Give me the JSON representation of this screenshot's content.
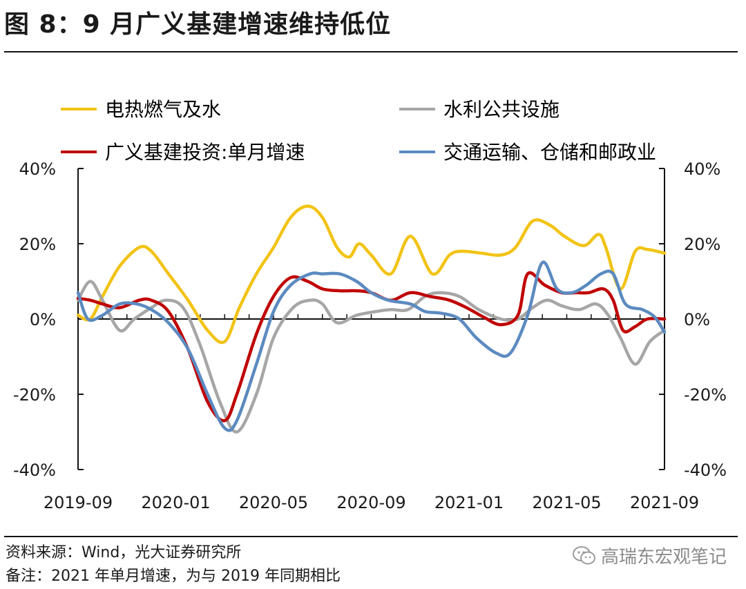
{
  "title": "图 8：9 月广义基建增速维持低位",
  "footer": {
    "source": "资料来源：Wind，光大证券研究所",
    "note": "备注：2021 年单月增速，为与 2019 年同期相比"
  },
  "watermark": {
    "text": "高瑞东宏观笔记"
  },
  "chart_data": {
    "type": "line",
    "title": "9 月广义基建增速维持低位",
    "x_tick_labels": [
      "2019-09",
      "2020-01",
      "2020-05",
      "2020-09",
      "2021-01",
      "2021-05",
      "2021-09"
    ],
    "y_tick_labels_left": [
      "40%",
      "20%",
      "0%",
      "-20%",
      "-40%"
    ],
    "y_tick_labels_right": [
      "40%",
      "20%",
      "0%",
      "-20%",
      "-40%"
    ],
    "ylim": [
      -40,
      40
    ],
    "x_range_months": [
      0,
      24
    ],
    "legend_position": "top",
    "series": [
      {
        "name": "电热燃气及水",
        "color": "#F2C315",
        "x": [
          0,
          0.5,
          1,
          1.7,
          2.5,
          3,
          3.7,
          4.5,
          5.3,
          6,
          6.6,
          7.3,
          8,
          8.7,
          9.4,
          10,
          10.6,
          11.1,
          11.5,
          12,
          12.8,
          13.6,
          14.5,
          15.2,
          15.7,
          16.5,
          17.3,
          17.9,
          18.6,
          19.3,
          19.9,
          20.7,
          21.3,
          21.6,
          22.2,
          22.8,
          23.3,
          24
        ],
        "values": [
          1,
          0,
          6,
          14,
          19,
          18,
          12,
          5,
          -3,
          -6,
          3,
          12,
          19,
          27,
          30,
          27,
          19,
          16.5,
          20,
          17,
          12,
          22,
          12,
          17,
          18,
          17.5,
          17,
          19,
          26,
          25,
          22,
          19.5,
          22.5,
          19,
          8,
          18,
          18.5,
          17.5
        ]
      },
      {
        "name": "水利公共设施",
        "color": "#A6A6A6",
        "x": [
          0,
          0.5,
          1,
          1.7,
          2.3,
          3,
          3.6,
          4.3,
          5,
          5.8,
          6.5,
          7.3,
          8,
          8.8,
          9.5,
          10,
          10.6,
          11.4,
          12.2,
          12.8,
          13.5,
          14.2,
          14.8,
          15.6,
          16.4,
          17.3,
          18,
          18.6,
          19.2,
          19.8,
          20.5,
          21.2,
          21.7,
          22.2,
          22.8,
          23.4,
          24
        ],
        "values": [
          5,
          10,
          5,
          -3,
          0,
          3,
          5,
          3,
          -7,
          -22,
          -30,
          -20,
          -5,
          3,
          5,
          4,
          -1,
          1,
          2,
          2.5,
          2.5,
          6,
          7,
          6,
          2.5,
          0,
          0,
          3,
          5,
          3.5,
          2.5,
          4,
          1,
          -5,
          -12,
          -6,
          -3
        ]
      },
      {
        "name": "广义基建投资:单月增速",
        "color": "#C00000",
        "x": [
          0,
          0.5,
          1,
          1.7,
          2.5,
          3,
          3.7,
          4.5,
          5.3,
          6,
          6.5,
          7.3,
          8,
          8.7,
          9.4,
          10,
          10.7,
          11.4,
          12,
          12.8,
          13.6,
          14.4,
          15.2,
          15.9,
          16.6,
          17.3,
          18,
          18.4,
          19.1,
          19.8,
          20.4,
          20.9,
          21.5,
          21.9,
          22.3,
          22.8,
          23.3,
          24
        ],
        "values": [
          5.5,
          5,
          4,
          3,
          5,
          5,
          2,
          -8,
          -22,
          -27,
          -20,
          -4,
          6,
          11,
          10,
          8,
          7.5,
          7.5,
          7,
          5,
          7,
          6,
          5,
          3,
          0.5,
          -1.5,
          1,
          12,
          9,
          7,
          7,
          7,
          8,
          5,
          -3,
          -2,
          0,
          0
        ]
      },
      {
        "name": "交通运输、仓储和邮政业",
        "color": "#5B8AC0",
        "x": [
          0,
          0.4,
          1,
          1.7,
          2.4,
          3,
          3.7,
          4.5,
          5.3,
          6,
          6.5,
          7.3,
          8,
          8.7,
          9.5,
          10,
          10.7,
          11.4,
          12,
          12.7,
          13.6,
          14.2,
          14.9,
          15.6,
          16.3,
          17.1,
          17.7,
          18.4,
          19,
          19.6,
          20.2,
          20.8,
          21.4,
          21.9,
          22.4,
          23.1,
          23.6,
          24
        ],
        "values": [
          7,
          0,
          1,
          4,
          4,
          2.5,
          -1,
          -8,
          -20,
          -29,
          -27,
          -12,
          2,
          9,
          12,
          12,
          12,
          10,
          7,
          5,
          4,
          2,
          1.5,
          0,
          -5,
          -9,
          -9,
          1,
          15,
          8,
          7,
          9,
          12,
          12,
          4,
          2.5,
          0.5,
          -3.5
        ]
      }
    ]
  }
}
